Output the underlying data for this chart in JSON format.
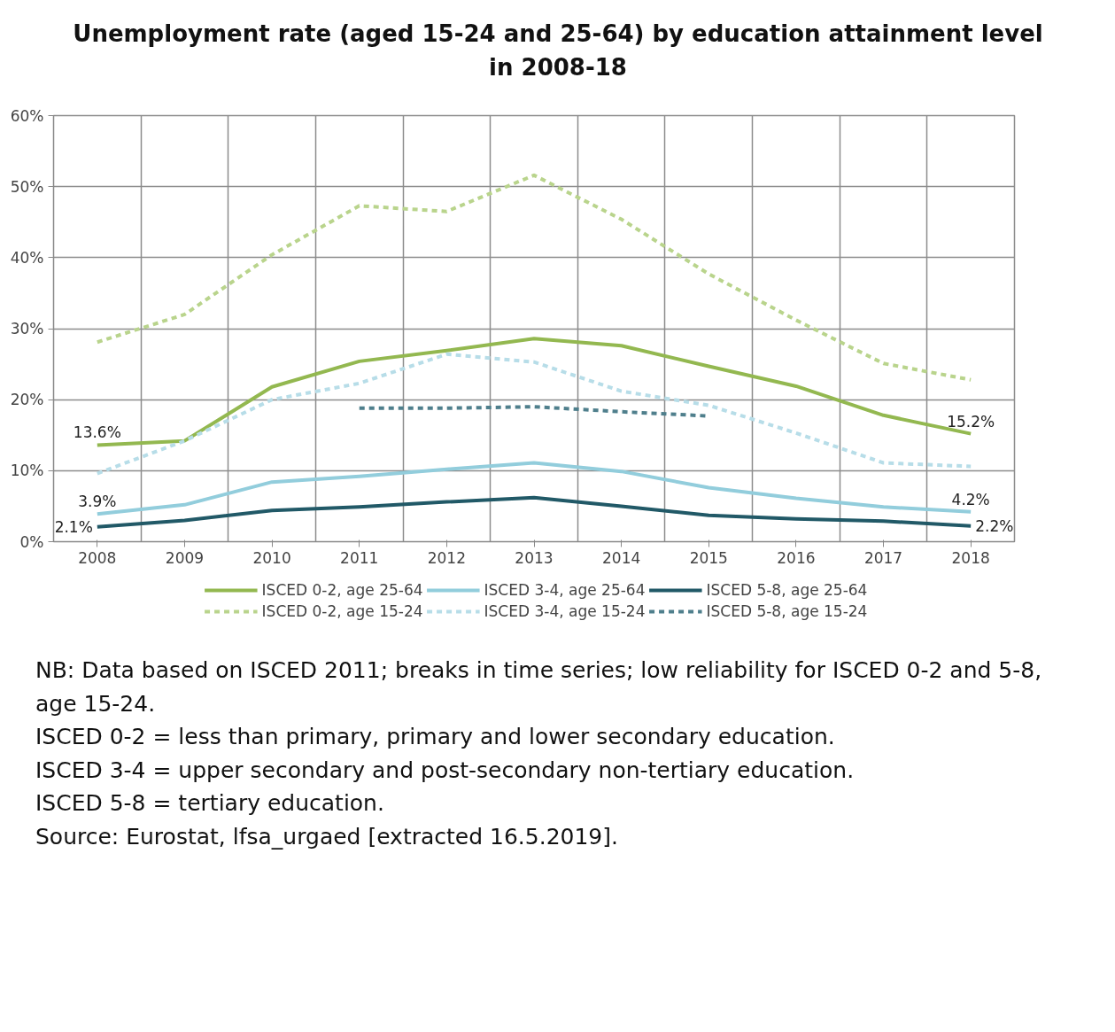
{
  "chart_data": {
    "type": "line",
    "title": "Unemployment rate (aged 15-24 and 25-64) by education attainment level in 2008-18",
    "categories": [
      "2008",
      "2009",
      "2010",
      "2011",
      "2012",
      "2013",
      "2014",
      "2015",
      "2016",
      "2017",
      "2018"
    ],
    "series": [
      {
        "name": "ISCED 0-2, age 25-64",
        "color": "#93b850",
        "line_style": "solid",
        "values": [
          13.6,
          14.2,
          21.8,
          25.4,
          26.9,
          28.6,
          27.6,
          24.7,
          21.9,
          17.8,
          15.2
        ],
        "value_labels": [
          "13.6%",
          null,
          null,
          null,
          null,
          null,
          null,
          null,
          null,
          null,
          "15.2%"
        ]
      },
      {
        "name": "ISCED 3-4, age 25-64",
        "color": "#92cddc",
        "line_style": "solid",
        "values": [
          3.9,
          5.2,
          8.4,
          9.2,
          10.2,
          11.1,
          9.9,
          7.6,
          6.1,
          4.9,
          4.2
        ],
        "value_labels": [
          "3.9%",
          null,
          null,
          null,
          null,
          null,
          null,
          null,
          null,
          null,
          "4.2%"
        ]
      },
      {
        "name": "ISCED 5-8, age 25-64",
        "color": "#215967",
        "line_style": "solid",
        "values": [
          2.1,
          3.0,
          4.4,
          4.9,
          5.6,
          6.2,
          5.0,
          3.7,
          3.2,
          2.9,
          2.2
        ],
        "value_labels": [
          "2.1%",
          null,
          null,
          null,
          null,
          null,
          null,
          null,
          null,
          null,
          "2.2%"
        ]
      },
      {
        "name": "ISCED 0-2, age 15-24",
        "color": "#b9d48c",
        "line_style": "dashed",
        "values": [
          28.1,
          32.0,
          40.4,
          47.3,
          46.5,
          51.6,
          45.4,
          37.7,
          31.2,
          25.1,
          22.8
        ]
      },
      {
        "name": "ISCED 3-4, age 15-24",
        "color": "#b7dde8",
        "line_style": "dashed",
        "values": [
          9.6,
          14.2,
          20.0,
          22.3,
          26.4,
          25.3,
          21.2,
          19.2,
          15.3,
          11.1,
          10.6
        ]
      },
      {
        "name": "ISCED 5-8, age 15-24",
        "color": "#4f7f8c",
        "line_style": "dashed",
        "values": [
          null,
          null,
          null,
          18.8,
          18.8,
          19.0,
          18.3,
          17.7,
          null,
          null,
          null
        ]
      }
    ],
    "ylim": [
      0,
      60
    ],
    "yticks": [
      {
        "value": 0,
        "label": "0%"
      },
      {
        "value": 10,
        "label": "10%"
      },
      {
        "value": 20,
        "label": "20%"
      },
      {
        "value": 30,
        "label": "30%"
      },
      {
        "value": 40,
        "label": "40%"
      },
      {
        "value": 50,
        "label": "50%"
      },
      {
        "value": 60,
        "label": "60%"
      }
    ],
    "grid": true,
    "legend": "bottom",
    "annotations": [
      "NB: Data based on ISCED 2011; breaks in time series; low reliability for ISCED 0-2 and 5-8, age 15-24.",
      "ISCED 0-2 = less than primary, primary and lower secondary education.",
      "ISCED 3-4 = upper secondary and post-secondary non-tertiary education.",
      "ISCED 5-8 = tertiary education.",
      "Source: Eurostat, lfsa_urgaed [extracted 16.5.2019]."
    ]
  }
}
